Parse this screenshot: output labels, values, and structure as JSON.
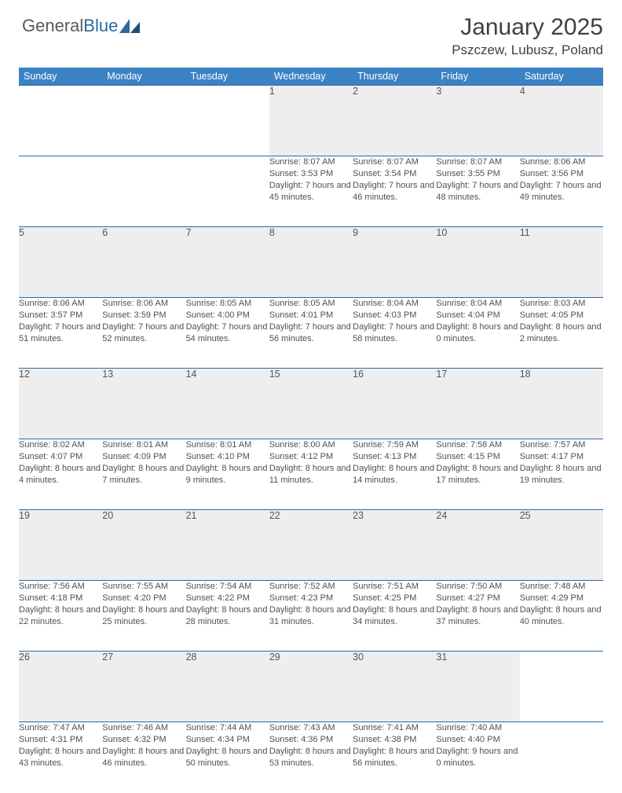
{
  "brand": {
    "part1": "General",
    "part2": "Blue"
  },
  "title": "January 2025",
  "location": "Pszczew, Lubusz, Poland",
  "colors": {
    "header_bg": "#3b82c4",
    "header_text": "#ffffff",
    "border": "#2c6aa0",
    "daynum_bg": "#eeeeee",
    "text": "#404040",
    "cell_text": "#505050",
    "logo_gray": "#5a5a5a",
    "logo_blue": "#2c6aa0"
  },
  "typography": {
    "title_fontsize": 30,
    "location_fontsize": 17,
    "header_fontsize": 12.5,
    "daynum_fontsize": 12.5,
    "cell_fontsize": 11
  },
  "days_of_week": [
    "Sunday",
    "Monday",
    "Tuesday",
    "Wednesday",
    "Thursday",
    "Friday",
    "Saturday"
  ],
  "weeks": [
    [
      {
        "n": "",
        "sunrise": "",
        "sunset": "",
        "daylight": ""
      },
      {
        "n": "",
        "sunrise": "",
        "sunset": "",
        "daylight": ""
      },
      {
        "n": "",
        "sunrise": "",
        "sunset": "",
        "daylight": ""
      },
      {
        "n": "1",
        "sunrise": "Sunrise: 8:07 AM",
        "sunset": "Sunset: 3:53 PM",
        "daylight": "Daylight: 7 hours and 45 minutes."
      },
      {
        "n": "2",
        "sunrise": "Sunrise: 8:07 AM",
        "sunset": "Sunset: 3:54 PM",
        "daylight": "Daylight: 7 hours and 46 minutes."
      },
      {
        "n": "3",
        "sunrise": "Sunrise: 8:07 AM",
        "sunset": "Sunset: 3:55 PM",
        "daylight": "Daylight: 7 hours and 48 minutes."
      },
      {
        "n": "4",
        "sunrise": "Sunrise: 8:06 AM",
        "sunset": "Sunset: 3:56 PM",
        "daylight": "Daylight: 7 hours and 49 minutes."
      }
    ],
    [
      {
        "n": "5",
        "sunrise": "Sunrise: 8:06 AM",
        "sunset": "Sunset: 3:57 PM",
        "daylight": "Daylight: 7 hours and 51 minutes."
      },
      {
        "n": "6",
        "sunrise": "Sunrise: 8:06 AM",
        "sunset": "Sunset: 3:59 PM",
        "daylight": "Daylight: 7 hours and 52 minutes."
      },
      {
        "n": "7",
        "sunrise": "Sunrise: 8:05 AM",
        "sunset": "Sunset: 4:00 PM",
        "daylight": "Daylight: 7 hours and 54 minutes."
      },
      {
        "n": "8",
        "sunrise": "Sunrise: 8:05 AM",
        "sunset": "Sunset: 4:01 PM",
        "daylight": "Daylight: 7 hours and 56 minutes."
      },
      {
        "n": "9",
        "sunrise": "Sunrise: 8:04 AM",
        "sunset": "Sunset: 4:03 PM",
        "daylight": "Daylight: 7 hours and 58 minutes."
      },
      {
        "n": "10",
        "sunrise": "Sunrise: 8:04 AM",
        "sunset": "Sunset: 4:04 PM",
        "daylight": "Daylight: 8 hours and 0 minutes."
      },
      {
        "n": "11",
        "sunrise": "Sunrise: 8:03 AM",
        "sunset": "Sunset: 4:05 PM",
        "daylight": "Daylight: 8 hours and 2 minutes."
      }
    ],
    [
      {
        "n": "12",
        "sunrise": "Sunrise: 8:02 AM",
        "sunset": "Sunset: 4:07 PM",
        "daylight": "Daylight: 8 hours and 4 minutes."
      },
      {
        "n": "13",
        "sunrise": "Sunrise: 8:01 AM",
        "sunset": "Sunset: 4:09 PM",
        "daylight": "Daylight: 8 hours and 7 minutes."
      },
      {
        "n": "14",
        "sunrise": "Sunrise: 8:01 AM",
        "sunset": "Sunset: 4:10 PM",
        "daylight": "Daylight: 8 hours and 9 minutes."
      },
      {
        "n": "15",
        "sunrise": "Sunrise: 8:00 AM",
        "sunset": "Sunset: 4:12 PM",
        "daylight": "Daylight: 8 hours and 11 minutes."
      },
      {
        "n": "16",
        "sunrise": "Sunrise: 7:59 AM",
        "sunset": "Sunset: 4:13 PM",
        "daylight": "Daylight: 8 hours and 14 minutes."
      },
      {
        "n": "17",
        "sunrise": "Sunrise: 7:58 AM",
        "sunset": "Sunset: 4:15 PM",
        "daylight": "Daylight: 8 hours and 17 minutes."
      },
      {
        "n": "18",
        "sunrise": "Sunrise: 7:57 AM",
        "sunset": "Sunset: 4:17 PM",
        "daylight": "Daylight: 8 hours and 19 minutes."
      }
    ],
    [
      {
        "n": "19",
        "sunrise": "Sunrise: 7:56 AM",
        "sunset": "Sunset: 4:18 PM",
        "daylight": "Daylight: 8 hours and 22 minutes."
      },
      {
        "n": "20",
        "sunrise": "Sunrise: 7:55 AM",
        "sunset": "Sunset: 4:20 PM",
        "daylight": "Daylight: 8 hours and 25 minutes."
      },
      {
        "n": "21",
        "sunrise": "Sunrise: 7:54 AM",
        "sunset": "Sunset: 4:22 PM",
        "daylight": "Daylight: 8 hours and 28 minutes."
      },
      {
        "n": "22",
        "sunrise": "Sunrise: 7:52 AM",
        "sunset": "Sunset: 4:23 PM",
        "daylight": "Daylight: 8 hours and 31 minutes."
      },
      {
        "n": "23",
        "sunrise": "Sunrise: 7:51 AM",
        "sunset": "Sunset: 4:25 PM",
        "daylight": "Daylight: 8 hours and 34 minutes."
      },
      {
        "n": "24",
        "sunrise": "Sunrise: 7:50 AM",
        "sunset": "Sunset: 4:27 PM",
        "daylight": "Daylight: 8 hours and 37 minutes."
      },
      {
        "n": "25",
        "sunrise": "Sunrise: 7:48 AM",
        "sunset": "Sunset: 4:29 PM",
        "daylight": "Daylight: 8 hours and 40 minutes."
      }
    ],
    [
      {
        "n": "26",
        "sunrise": "Sunrise: 7:47 AM",
        "sunset": "Sunset: 4:31 PM",
        "daylight": "Daylight: 8 hours and 43 minutes."
      },
      {
        "n": "27",
        "sunrise": "Sunrise: 7:46 AM",
        "sunset": "Sunset: 4:32 PM",
        "daylight": "Daylight: 8 hours and 46 minutes."
      },
      {
        "n": "28",
        "sunrise": "Sunrise: 7:44 AM",
        "sunset": "Sunset: 4:34 PM",
        "daylight": "Daylight: 8 hours and 50 minutes."
      },
      {
        "n": "29",
        "sunrise": "Sunrise: 7:43 AM",
        "sunset": "Sunset: 4:36 PM",
        "daylight": "Daylight: 8 hours and 53 minutes."
      },
      {
        "n": "30",
        "sunrise": "Sunrise: 7:41 AM",
        "sunset": "Sunset: 4:38 PM",
        "daylight": "Daylight: 8 hours and 56 minutes."
      },
      {
        "n": "31",
        "sunrise": "Sunrise: 7:40 AM",
        "sunset": "Sunset: 4:40 PM",
        "daylight": "Daylight: 9 hours and 0 minutes."
      },
      {
        "n": "",
        "sunrise": "",
        "sunset": "",
        "daylight": ""
      }
    ]
  ]
}
